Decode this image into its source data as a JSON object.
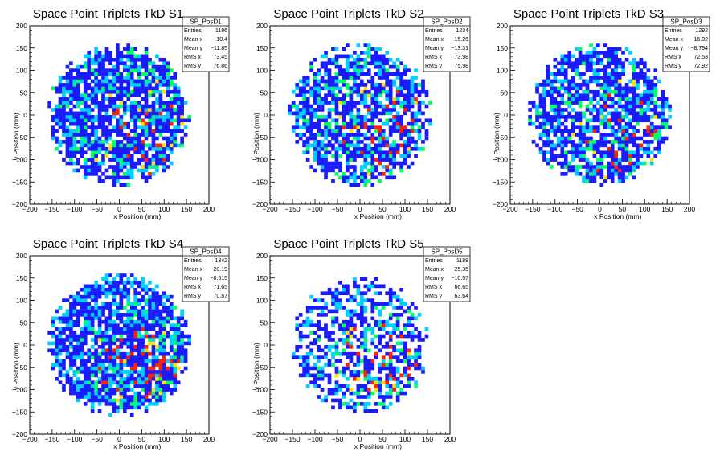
{
  "chart_data": [
    {
      "type": "heatmap",
      "title": "Space Point Triplets TkD S1",
      "xlabel": "x Position (mm)",
      "ylabel": "y Position (mm)",
      "xlim": [
        -200,
        200
      ],
      "ylim": [
        -200,
        200
      ],
      "xticks": [
        "−200",
        "−150",
        "−100",
        "−50",
        "0",
        "50",
        "100",
        "150",
        "200"
      ],
      "yticks": [
        "−200",
        "−150",
        "−100",
        "−50",
        "0",
        "50",
        "100",
        "150",
        "200"
      ],
      "stats": {
        "name": "SP_PosD1",
        "rows": [
          {
            "label": "Entries",
            "value": "1186"
          },
          {
            "label": "Mean x",
            "value": "10.4"
          },
          {
            "label": "Mean y",
            "value": "−11.85"
          },
          {
            "label": "RMS x",
            "value": "73.45"
          },
          {
            "label": "RMS y",
            "value": "76.86"
          }
        ]
      },
      "binning": {
        "bins_per_axis": 50,
        "footprint_radius_mm": 160,
        "fill_fraction": 0.8,
        "hot_fraction": 0.09
      }
    },
    {
      "type": "heatmap",
      "title": "Space Point Triplets TkD S2",
      "xlabel": "x Position (mm)",
      "ylabel": "y Position (mm)",
      "xlim": [
        -200,
        200
      ],
      "ylim": [
        -200,
        200
      ],
      "xticks": [
        "−200",
        "−150",
        "−100",
        "−50",
        "0",
        "50",
        "100",
        "150",
        "200"
      ],
      "yticks": [
        "−200",
        "−150",
        "−100",
        "−50",
        "0",
        "50",
        "100",
        "150",
        "200"
      ],
      "stats": {
        "name": "SP_PosD2",
        "rows": [
          {
            "label": "Entries",
            "value": "1234"
          },
          {
            "label": "Mean x",
            "value": "15.26"
          },
          {
            "label": "Mean y",
            "value": "−13.31"
          },
          {
            "label": "RMS x",
            "value": "73.98"
          },
          {
            "label": "RMS y",
            "value": "75.98"
          }
        ]
      },
      "binning": {
        "bins_per_axis": 50,
        "footprint_radius_mm": 160,
        "fill_fraction": 0.72,
        "hot_fraction": 0.11
      }
    },
    {
      "type": "heatmap",
      "title": "Space Point Triplets TkD S3",
      "xlabel": "x Position (mm)",
      "ylabel": "y Position (mm)",
      "xlim": [
        -200,
        200
      ],
      "ylim": [
        -200,
        200
      ],
      "xticks": [
        "−200",
        "−150",
        "−100",
        "−50",
        "0",
        "50",
        "100",
        "150",
        "200"
      ],
      "yticks": [
        "−200",
        "−150",
        "−100",
        "−50",
        "0",
        "50",
        "100",
        "150",
        "200"
      ],
      "stats": {
        "name": "SP_PosD3",
        "rows": [
          {
            "label": "Entries",
            "value": "1292"
          },
          {
            "label": "Mean x",
            "value": "16.02"
          },
          {
            "label": "Mean y",
            "value": "−8.794"
          },
          {
            "label": "RMS x",
            "value": "72.53"
          },
          {
            "label": "RMS y",
            "value": "72.92"
          }
        ]
      },
      "binning": {
        "bins_per_axis": 50,
        "footprint_radius_mm": 160,
        "fill_fraction": 0.75,
        "hot_fraction": 0.1
      }
    },
    {
      "type": "heatmap",
      "title": "Space Point Triplets TkD S4",
      "xlabel": "x Position (mm)",
      "ylabel": "y Position (mm)",
      "xlim": [
        -200,
        200
      ],
      "ylim": [
        -200,
        200
      ],
      "xticks": [
        "−200",
        "−150",
        "−100",
        "−50",
        "0",
        "50",
        "100",
        "150",
        "200"
      ],
      "yticks": [
        "−200",
        "−150",
        "−100",
        "−50",
        "0",
        "50",
        "100",
        "150",
        "200"
      ],
      "stats": {
        "name": "SP_PosD4",
        "rows": [
          {
            "label": "Entries",
            "value": "1342"
          },
          {
            "label": "Mean x",
            "value": "20.19"
          },
          {
            "label": "Mean y",
            "value": "−8.515"
          },
          {
            "label": "RMS x",
            "value": "71.65"
          },
          {
            "label": "RMS y",
            "value": "70.87"
          }
        ]
      },
      "binning": {
        "bins_per_axis": 50,
        "footprint_radius_mm": 160,
        "fill_fraction": 0.84,
        "hot_fraction": 0.18
      }
    },
    {
      "type": "heatmap",
      "title": "Space Point Triplets TkD S5",
      "xlabel": "x Position (mm)",
      "ylabel": "y Position (mm)",
      "xlim": [
        -200,
        200
      ],
      "ylim": [
        -200,
        200
      ],
      "xticks": [
        "−200",
        "−150",
        "−100",
        "−50",
        "0",
        "50",
        "100",
        "150",
        "200"
      ],
      "yticks": [
        "−200",
        "−150",
        "−100",
        "−50",
        "0",
        "50",
        "100",
        "150",
        "200"
      ],
      "stats": {
        "name": "SP_PosD5",
        "rows": [
          {
            "label": "Entries",
            "value": "1188"
          },
          {
            "label": "Mean x",
            "value": "25.35"
          },
          {
            "label": "Mean y",
            "value": "−10.57"
          },
          {
            "label": "RMS x",
            "value": "66.65"
          },
          {
            "label": "RMS y",
            "value": "63.64"
          }
        ]
      },
      "binning": {
        "bins_per_axis": 50,
        "footprint_radius_mm": 155,
        "fill_fraction": 0.55,
        "hot_fraction": 0.17
      }
    }
  ],
  "palette": {
    "low": "#1a1aff",
    "mid": "#00d0ff",
    "high": "#00ff60",
    "higher": "#ffe000",
    "peak": "#ff2000"
  }
}
